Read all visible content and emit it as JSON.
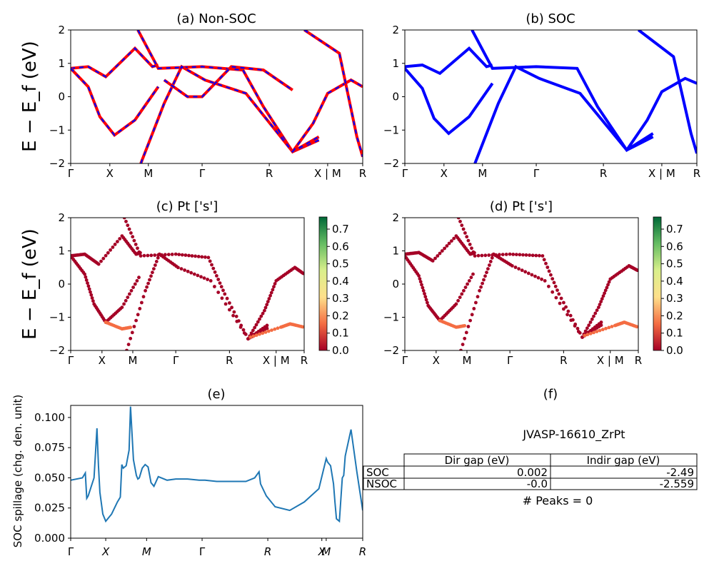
{
  "panels": {
    "a": {
      "title": "(a) Non-SOC"
    },
    "b": {
      "title": "(b) SOC"
    },
    "c": {
      "title": "(c)  Pt ['s']"
    },
    "d": {
      "title": "(d) Pt ['s']"
    },
    "e": {
      "title": "(e)"
    },
    "f": {
      "title": "(f)"
    }
  },
  "band_axis": {
    "ylabel": "E − E_f (eV)",
    "ylim": [
      -2,
      2
    ],
    "yticks": [
      "2",
      "1",
      "0",
      "−1",
      "−2"
    ],
    "kticks": [
      "Γ",
      "X",
      "M",
      "Γ",
      "R",
      "X | M",
      "R"
    ]
  },
  "colorbar": {
    "ticks": [
      "0.0",
      "0.1",
      "0.2",
      "0.3",
      "0.4",
      "0.5",
      "0.6",
      "0.7"
    ],
    "colors": [
      "#a50026",
      "#f46d43",
      "#fee08b",
      "#d9ef8b",
      "#66bd63",
      "#006837"
    ]
  },
  "spillage_axis": {
    "ylabel": "SOC spillage (chg. den. unit)",
    "yticks": [
      "0.000",
      "0.025",
      "0.050",
      "0.075",
      "0.100"
    ],
    "kticks": [
      "Γ",
      "X",
      "M",
      "Γ",
      "R",
      "X",
      "M",
      "R"
    ]
  },
  "table": {
    "name": "JVASP-16610_ZrPt",
    "headers": [
      "",
      "Dir gap (eV)",
      "Indir gap (eV)"
    ],
    "rows": [
      {
        "label": "SOC",
        "dir": "0.002",
        "indir": "-2.49"
      },
      {
        "label": "NSOC",
        "dir": "-0.0",
        "indir": "-2.559"
      }
    ],
    "peaks": "# Peaks = 0"
  },
  "chart_data": [
    {
      "type": "line",
      "title": "(a) Non-SOC",
      "ylabel": "E − E_f (eV)",
      "ylim": [
        -2,
        2
      ],
      "xticks": [
        "Γ",
        "X",
        "M",
        "Γ",
        "R",
        "X | M",
        "R"
      ],
      "colors": {
        "nonsoc": "#ff0000",
        "soc_dashed": "#0000ff"
      },
      "series": [
        {
          "x": [
            0,
            0.6,
            1.2,
            2.2,
            2.8,
            3.0
          ],
          "y": [
            0.85,
            0.9,
            0.6,
            1.45,
            0.9,
            0.95
          ]
        },
        {
          "x": [
            0,
            0.6,
            1.0,
            1.5,
            2.2,
            3.0
          ],
          "y": [
            0.85,
            0.3,
            -0.6,
            -1.15,
            -0.7,
            0.3
          ]
        },
        {
          "x": [
            2.3,
            3.0,
            4.5,
            5.9,
            6.6,
            7.6,
            8.5
          ],
          "y": [
            2.0,
            0.85,
            0.9,
            0.8,
            -0.3,
            -1.65,
            -1.3
          ]
        },
        {
          "x": [
            2.4,
            3.2,
            3.8,
            4.6,
            6.0,
            7.6,
            8.5
          ],
          "y": [
            -2.0,
            -0.2,
            0.9,
            0.5,
            0.1,
            -1.65,
            -1.2
          ]
        },
        {
          "x": [
            3.2,
            4.0,
            4.5,
            5.5,
            6.6,
            7.6
          ],
          "y": [
            0.5,
            0.0,
            0.0,
            0.9,
            0.8,
            0.2
          ]
        },
        {
          "x": [
            7.6,
            8.3,
            8.8,
            9.6,
            10.0
          ],
          "y": [
            -1.65,
            -0.8,
            0.1,
            0.5,
            0.3
          ]
        },
        {
          "x": [
            8.0,
            9.2,
            9.8,
            10.0
          ],
          "y": [
            2.0,
            1.3,
            -1.2,
            -1.8
          ]
        }
      ]
    },
    {
      "type": "line",
      "title": "(b) SOC",
      "ylabel": "",
      "ylim": [
        -2,
        2
      ],
      "xticks": [
        "Γ",
        "X",
        "M",
        "Γ",
        "R",
        "X | M",
        "R"
      ],
      "colors": {
        "soc": "#0000ff"
      },
      "series": [
        {
          "x": [
            0,
            0.6,
            1.2,
            2.2,
            2.8,
            3.0
          ],
          "y": [
            0.9,
            0.95,
            0.7,
            1.45,
            0.9,
            0.95
          ]
        },
        {
          "x": [
            0,
            0.6,
            1.0,
            1.5,
            2.2,
            3.0
          ],
          "y": [
            0.85,
            0.25,
            -0.65,
            -1.1,
            -0.6,
            0.4
          ]
        },
        {
          "x": [
            2.3,
            3.0,
            4.5,
            5.9,
            6.6,
            7.6,
            8.5
          ],
          "y": [
            2.0,
            0.85,
            0.9,
            0.85,
            -0.3,
            -1.6,
            -1.1
          ]
        },
        {
          "x": [
            2.4,
            3.2,
            3.8,
            4.6,
            6.0,
            7.6,
            8.5
          ],
          "y": [
            -2.0,
            -0.2,
            0.9,
            0.55,
            0.1,
            -1.6,
            -1.2
          ]
        },
        {
          "x": [
            7.6,
            8.3,
            8.8,
            9.6,
            10.0
          ],
          "y": [
            -1.6,
            -0.7,
            0.15,
            0.55,
            0.4
          ]
        },
        {
          "x": [
            8.0,
            9.2,
            9.8,
            10.0
          ],
          "y": [
            2.0,
            1.2,
            -1.1,
            -1.7
          ]
        }
      ]
    },
    {
      "type": "scatter",
      "title": "(c)  Pt ['s']",
      "ylabel": "E − E_f (eV)",
      "ylim": [
        -2,
        2
      ],
      "xticks": [
        "Γ",
        "X",
        "M",
        "Γ",
        "R",
        "X | M",
        "R"
      ],
      "colorbar_range": [
        0.0,
        0.77
      ],
      "series": [
        {
          "x": [
            0,
            0.6,
            1.2,
            2.2,
            2.8,
            3.0
          ],
          "y": [
            0.85,
            0.9,
            0.6,
            1.45,
            0.9,
            0.95
          ],
          "weight": 0.0
        },
        {
          "x": [
            0,
            0.6,
            1.0,
            1.5,
            2.2,
            3.0
          ],
          "y": [
            0.85,
            0.3,
            -0.6,
            -1.15,
            -0.7,
            0.3
          ],
          "weight": 0.05
        },
        {
          "x": [
            2.3,
            3.0,
            4.5,
            5.9,
            6.6,
            7.6,
            8.5
          ],
          "y": [
            2.0,
            0.85,
            0.9,
            0.8,
            -0.3,
            -1.65,
            -1.3
          ],
          "weight": 0.0
        },
        {
          "x": [
            2.4,
            3.2,
            3.8,
            4.6,
            6.0,
            7.6,
            8.5
          ],
          "y": [
            -2.0,
            -0.2,
            0.9,
            0.5,
            0.1,
            -1.65,
            -1.2
          ],
          "weight": 0.02
        },
        {
          "x": [
            1.5,
            2.2,
            2.6
          ],
          "y": [
            -1.15,
            -1.35,
            -1.3
          ],
          "weight": 0.12
        },
        {
          "x": [
            7.6,
            8.3,
            8.8,
            9.6,
            10.0
          ],
          "y": [
            -1.65,
            -0.8,
            0.1,
            0.5,
            0.3
          ],
          "weight": 0.0
        },
        {
          "x": [
            7.7,
            9.0,
            9.4,
            10.0
          ],
          "y": [
            -1.6,
            -1.3,
            -1.2,
            -1.3
          ],
          "weight": 0.12
        }
      ]
    },
    {
      "type": "scatter",
      "title": "(d) Pt ['s']",
      "ylabel": "",
      "ylim": [
        -2,
        2
      ],
      "xticks": [
        "Γ",
        "X",
        "M",
        "Γ",
        "R",
        "X | M",
        "R"
      ],
      "colorbar_range": [
        0.0,
        0.77
      ],
      "series": [
        {
          "x": [
            0,
            0.6,
            1.2,
            2.2,
            2.8,
            3.0
          ],
          "y": [
            0.9,
            0.95,
            0.7,
            1.45,
            0.9,
            0.95
          ],
          "weight": 0.0
        },
        {
          "x": [
            0,
            0.6,
            1.0,
            1.5,
            2.2,
            3.0
          ],
          "y": [
            0.85,
            0.25,
            -0.65,
            -1.1,
            -0.6,
            0.4
          ],
          "weight": 0.05
        },
        {
          "x": [
            2.3,
            3.0,
            4.5,
            5.9,
            6.6,
            7.6,
            8.5
          ],
          "y": [
            2.0,
            0.85,
            0.9,
            0.85,
            -0.3,
            -1.6,
            -1.1
          ],
          "weight": 0.0
        },
        {
          "x": [
            2.4,
            3.2,
            3.8,
            4.6,
            6.0,
            7.6,
            8.5
          ],
          "y": [
            -2.0,
            -0.2,
            0.9,
            0.55,
            0.1,
            -1.6,
            -1.2
          ],
          "weight": 0.02
        },
        {
          "x": [
            1.5,
            2.2,
            2.6
          ],
          "y": [
            -1.1,
            -1.3,
            -1.25
          ],
          "weight": 0.12
        },
        {
          "x": [
            7.6,
            8.3,
            8.8,
            9.6,
            10.0
          ],
          "y": [
            -1.6,
            -0.7,
            0.15,
            0.55,
            0.4
          ],
          "weight": 0.0
        },
        {
          "x": [
            7.7,
            9.0,
            9.4,
            10.0
          ],
          "y": [
            -1.55,
            -1.25,
            -1.15,
            -1.3
          ],
          "weight": 0.12
        }
      ]
    },
    {
      "type": "line",
      "title": "(e)",
      "ylabel": "SOC spillage (chg. den. unit)",
      "ylim": [
        0,
        0.11
      ],
      "xticks": [
        "Γ",
        "X",
        "M",
        "Γ",
        "R",
        "X",
        "M",
        "R"
      ],
      "color": "#1f77b4",
      "x": [
        0,
        0.4,
        0.5,
        0.55,
        0.6,
        0.8,
        0.9,
        0.95,
        1.0,
        1.1,
        1.2,
        1.4,
        1.6,
        1.7,
        1.75,
        1.8,
        1.9,
        2.0,
        2.05,
        2.15,
        2.25,
        2.3,
        2.35,
        2.45,
        2.55,
        2.6,
        2.65,
        2.75,
        2.85,
        3.0,
        3.3,
        3.6,
        4.0,
        4.4,
        4.6,
        5.0,
        5.3,
        5.6,
        6.0,
        6.3,
        6.45,
        6.5,
        6.7,
        7.0,
        7.5,
        8.0,
        8.5,
        8.75,
        8.8,
        8.9,
        9.0,
        9.05,
        9.1,
        9.2,
        9.3,
        9.35,
        9.4,
        9.6,
        9.8,
        10.0
      ],
      "y": [
        0.048,
        0.05,
        0.054,
        0.033,
        0.035,
        0.05,
        0.091,
        0.06,
        0.038,
        0.02,
        0.014,
        0.02,
        0.03,
        0.034,
        0.061,
        0.058,
        0.06,
        0.073,
        0.109,
        0.065,
        0.052,
        0.049,
        0.05,
        0.058,
        0.061,
        0.06,
        0.059,
        0.046,
        0.043,
        0.051,
        0.048,
        0.049,
        0.049,
        0.048,
        0.048,
        0.047,
        0.047,
        0.047,
        0.047,
        0.05,
        0.055,
        0.045,
        0.035,
        0.026,
        0.023,
        0.03,
        0.041,
        0.066,
        0.063,
        0.06,
        0.045,
        0.03,
        0.016,
        0.014,
        0.05,
        0.052,
        0.068,
        0.09,
        0.055,
        0.023
      ]
    }
  ]
}
